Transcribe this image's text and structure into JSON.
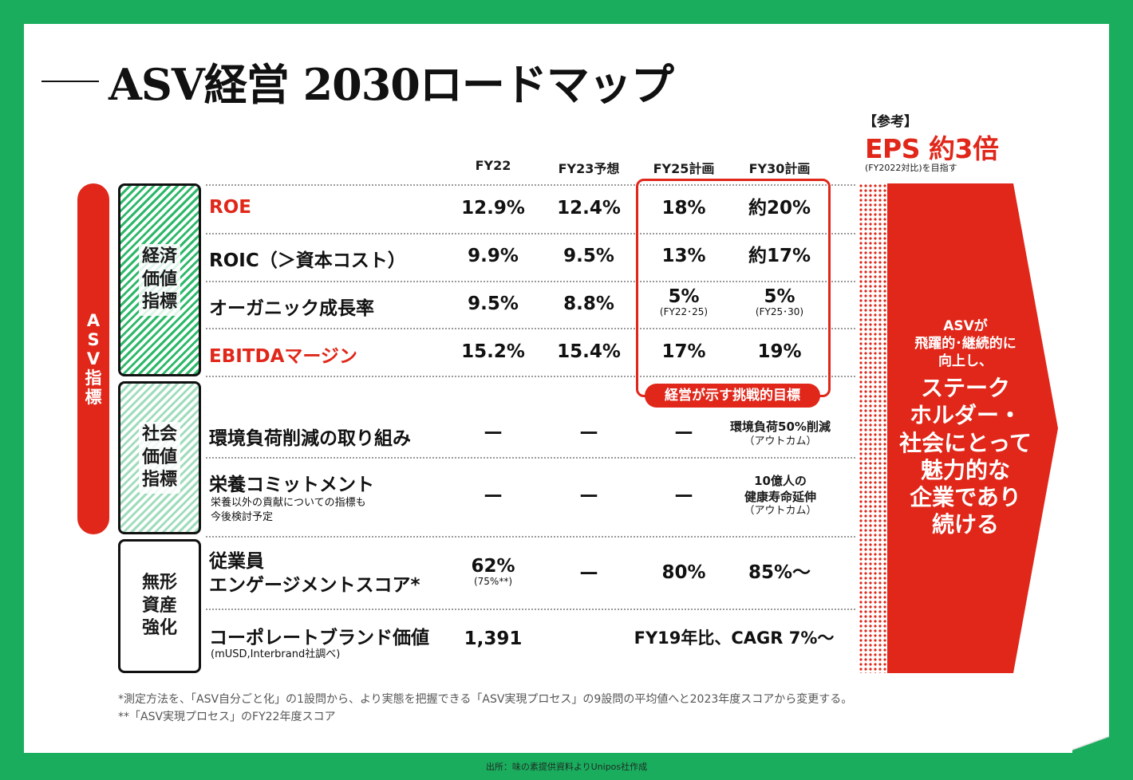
{
  "title": "ASV経営 2030ロードマップ",
  "columns": [
    "FY22",
    "FY23予想",
    "FY25計画",
    "FY30計画"
  ],
  "reference": {
    "note": "【参考】",
    "headline": "EPS 約3倍",
    "sub": "(FY2022対比)を目指す"
  },
  "asv_pill": [
    "A",
    "S",
    "V",
    "指",
    "標"
  ],
  "categories": {
    "econ": [
      "経済",
      "価値",
      "指標"
    ],
    "soc": [
      "社会",
      "価値",
      "指標"
    ],
    "int": [
      "無形",
      "資産",
      "強化"
    ]
  },
  "rows": {
    "roe": {
      "label": "ROE",
      "fy22": "12.9%",
      "fy23": "12.4%",
      "fy25": "18%",
      "fy30": "約20%"
    },
    "roic": {
      "label": "ROIC（＞資本コスト）",
      "fy22": "9.9%",
      "fy23": "9.5%",
      "fy25": "13%",
      "fy30": "約17%"
    },
    "organic": {
      "label": "オーガニック成長率",
      "fy22": "9.5%",
      "fy23": "8.8%",
      "fy25": "5%",
      "fy25_sub": "(FY22･25)",
      "fy30": "5%",
      "fy30_sub": "(FY25･30)"
    },
    "ebitda": {
      "label": "EBITDAマージン",
      "fy22": "15.2%",
      "fy23": "15.4%",
      "fy25": "17%",
      "fy30": "19%"
    },
    "env": {
      "label": "環境負荷削減の取り組み",
      "fy22": "—",
      "fy23": "—",
      "fy25": "—",
      "fy30": "環境負荷50%削減",
      "fy30_sub": "（アウトカム）"
    },
    "nutrition": {
      "label": "栄養コミットメント",
      "sub1": "栄養以外の貢献についての指標も",
      "sub2": "今後検討予定",
      "fy22": "—",
      "fy23": "—",
      "fy25": "—",
      "fy30_1": "10億人の",
      "fy30_2": "健康寿命延伸",
      "fy30_sub": "（アウトカム）"
    },
    "engagement": {
      "label1": "従業員",
      "label2": "エンゲージメントスコア*",
      "fy22": "62%",
      "fy22_sub": "(75%**)",
      "fy23": "—",
      "fy25": "80%",
      "fy30": "85%〜"
    },
    "brand": {
      "label": "コーポレートブランド価値",
      "sub": "(mUSD,Interbrand社調べ)",
      "fy22": "1,391",
      "span": "FY19年比、CAGR 7%〜"
    }
  },
  "goal_badge": "経営が示す挑戦的目標",
  "arrow": {
    "small": [
      "ASVが",
      "飛躍的･継続的に",
      "向上し、"
    ],
    "big": [
      "ステーク",
      "ホルダー・",
      "社会にとって",
      "魅力的な",
      "企業であり",
      "続ける"
    ]
  },
  "footnotes": [
    "*測定方法を、「ASV自分ごと化」の1設問から、より実態を把握できる「ASV実現プロセス」の9設問の平均値へと2023年度スコアから変更する。",
    "**「ASV実現プロセス」のFY22年度スコア"
  ],
  "source": "出所：味の素提供資料よりUnipos社作成",
  "colors": {
    "red": "#e0271a",
    "green": "#1aad5e"
  }
}
